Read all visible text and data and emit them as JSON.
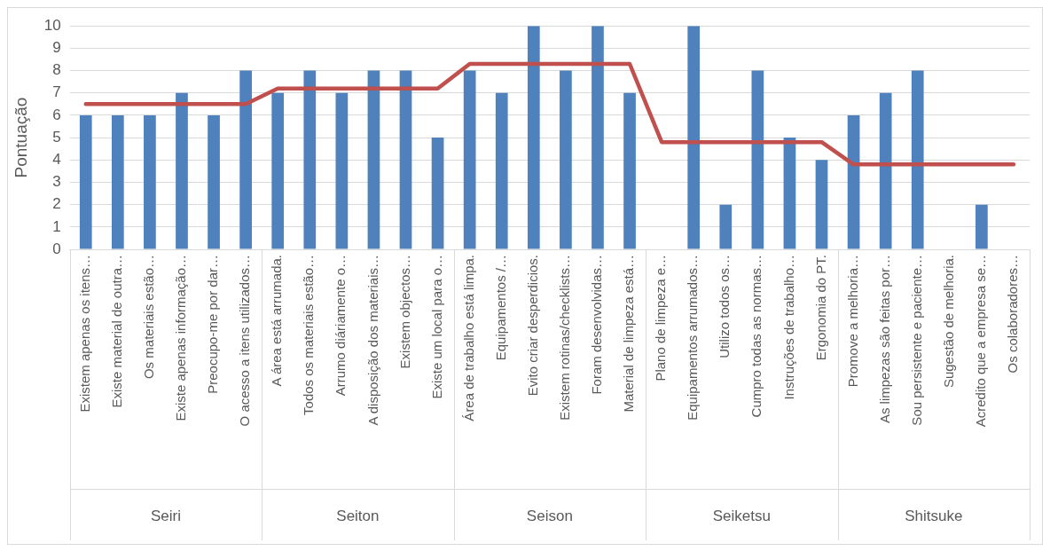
{
  "chart_data": {
    "type": "bar",
    "ylabel": "Pontuação",
    "categories": [
      "Existem apenas os itens…",
      "Existe material de outra…",
      "Os materiais estão…",
      "Existe apenas informação…",
      "Preocupo-me por dar…",
      "O acesso a itens utilizados…",
      "A área está arrumada.",
      "Todos os materiais estão…",
      "Arrumo diáriamente o…",
      "A disposição dos materiais…",
      "Existem objectos…",
      "Existe um local para o…",
      "Área de trabalho está limpa.",
      "Equipamentos /…",
      "Evito criar desperdicios.",
      "Existem rotinas/checklists…",
      "Foram desenvolvidas…",
      "Material de limpeza está…",
      "Plano de limpeza e…",
      "Equipamentos arrumados…",
      "Utilizo todos os…",
      "Cumpro todas as normas…",
      "Instruções de trabalho…",
      "Ergonomia do PT.",
      "Promove a melhoria…",
      "As limpezas são feitas por…",
      "Sou persistente e paciente…",
      "Sugestão de melhoria.",
      "Acredito que a empresa se…",
      "Os colaboradores…"
    ],
    "series": [
      {
        "color": "#4f81bd",
        "values": [
          6,
          6,
          6,
          7,
          6,
          8,
          7,
          8,
          7,
          8,
          8,
          5,
          8,
          7,
          10,
          8,
          10,
          7,
          0,
          10,
          2,
          8,
          5,
          4,
          6,
          7,
          8,
          0,
          2,
          0
        ]
      },
      {
        "type": "line",
        "color": "#c0504d",
        "values": [
          6.5,
          6.5,
          6.5,
          6.5,
          6.5,
          6.5,
          7.2,
          7.2,
          7.2,
          7.2,
          7.2,
          7.2,
          8.3,
          8.3,
          8.3,
          8.3,
          8.3,
          8.3,
          4.8,
          4.8,
          4.8,
          4.8,
          4.8,
          4.8,
          3.8,
          3.8,
          3.8,
          3.8,
          3.8,
          3.8
        ]
      }
    ],
    "annotations": [
      "Seiri",
      "Seiton",
      "Seison",
      "Seiketsu",
      "Shitsuke"
    ],
    "ylim": [
      0,
      10
    ],
    "yticks": [
      0,
      1,
      2,
      3,
      4,
      5,
      6,
      7,
      8,
      9,
      10
    ],
    "grid": "y",
    "legend": false,
    "marker": "none",
    "line_style": "solid"
  }
}
